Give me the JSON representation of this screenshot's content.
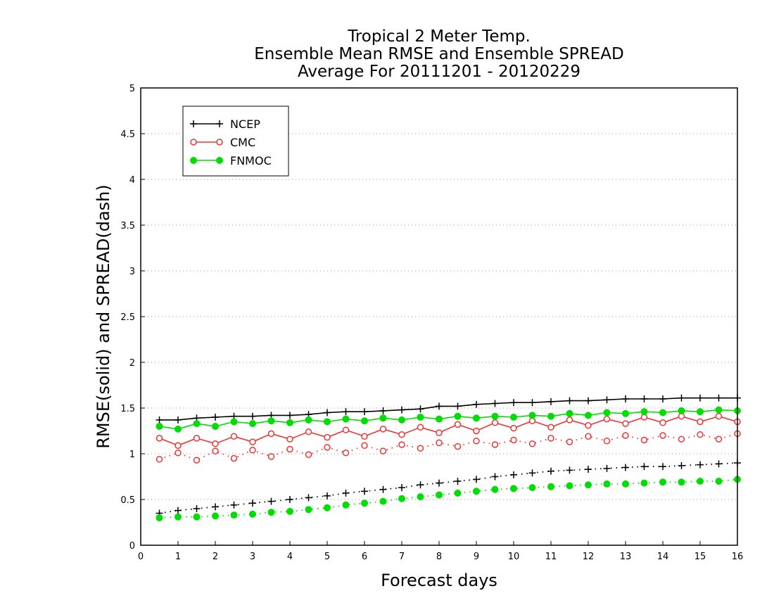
{
  "chart_data": {
    "type": "line",
    "title": [
      "Tropical 2 Meter Temp.",
      "Ensemble Mean RMSE and Ensemble SPREAD",
      "Average For 20111201 - 20120229"
    ],
    "xlabel": "Forecast days",
    "ylabel": "RMSE(solid) and SPREAD(dash)",
    "xlim": [
      0,
      16
    ],
    "ylim": [
      0,
      5
    ],
    "xticks": [
      0,
      1,
      2,
      3,
      4,
      5,
      6,
      7,
      8,
      9,
      10,
      11,
      12,
      13,
      14,
      15,
      16
    ],
    "yticks": [
      0,
      0.5,
      1,
      1.5,
      2,
      2.5,
      3,
      3.5,
      4,
      4.5,
      5
    ],
    "ytick_labels": [
      "0",
      "0.5",
      "1",
      "1.5",
      "2",
      "2.5",
      "3",
      "3.5",
      "4",
      "4.5",
      "5"
    ],
    "grid": "horizontal dotted",
    "legend_position": "top-left",
    "x": [
      0.5,
      1,
      1.5,
      2,
      2.5,
      3,
      3.5,
      4,
      4.5,
      5,
      5.5,
      6,
      6.5,
      7,
      7.5,
      8,
      8.5,
      9,
      9.5,
      10,
      10.5,
      11,
      11.5,
      12,
      12.5,
      13,
      13.5,
      14,
      14.5,
      15,
      15.5,
      16
    ],
    "series": [
      {
        "name": "NCEP",
        "kind": "rmse",
        "style": "solid",
        "color": "#000000",
        "marker": "plus",
        "values": [
          1.37,
          1.37,
          1.39,
          1.4,
          1.41,
          1.41,
          1.42,
          1.42,
          1.43,
          1.45,
          1.46,
          1.46,
          1.47,
          1.48,
          1.49,
          1.52,
          1.52,
          1.54,
          1.55,
          1.56,
          1.56,
          1.57,
          1.58,
          1.58,
          1.59,
          1.6,
          1.6,
          1.6,
          1.61,
          1.61,
          1.61,
          1.61
        ]
      },
      {
        "name": "CMC",
        "kind": "rmse",
        "style": "solid",
        "color": "#ee3333",
        "marker": "open-circle",
        "values": [
          1.17,
          1.09,
          1.17,
          1.11,
          1.19,
          1.13,
          1.22,
          1.16,
          1.24,
          1.18,
          1.26,
          1.19,
          1.27,
          1.21,
          1.29,
          1.23,
          1.32,
          1.25,
          1.34,
          1.28,
          1.36,
          1.29,
          1.37,
          1.31,
          1.38,
          1.33,
          1.4,
          1.34,
          1.41,
          1.35,
          1.41,
          1.35
        ]
      },
      {
        "name": "FNMOC",
        "kind": "rmse",
        "style": "solid",
        "color": "#00dd00",
        "marker": "filled-circle",
        "values": [
          1.3,
          1.27,
          1.33,
          1.3,
          1.35,
          1.33,
          1.36,
          1.34,
          1.37,
          1.35,
          1.38,
          1.36,
          1.39,
          1.37,
          1.4,
          1.38,
          1.41,
          1.39,
          1.41,
          1.4,
          1.42,
          1.41,
          1.44,
          1.42,
          1.45,
          1.44,
          1.46,
          1.45,
          1.47,
          1.46,
          1.48,
          1.47
        ]
      },
      {
        "name": "NCEP",
        "kind": "spread",
        "style": "dash",
        "color": "#000000",
        "marker": "plus",
        "values": [
          0.35,
          0.38,
          0.4,
          0.42,
          0.44,
          0.46,
          0.48,
          0.5,
          0.52,
          0.54,
          0.57,
          0.59,
          0.61,
          0.63,
          0.66,
          0.68,
          0.7,
          0.72,
          0.75,
          0.77,
          0.79,
          0.81,
          0.82,
          0.83,
          0.84,
          0.85,
          0.86,
          0.86,
          0.87,
          0.88,
          0.89,
          0.9
        ]
      },
      {
        "name": "CMC",
        "kind": "spread",
        "style": "dash",
        "color": "#ee3333",
        "marker": "open-circle",
        "values": [
          0.94,
          1.01,
          0.93,
          1.03,
          0.95,
          1.04,
          0.97,
          1.05,
          0.99,
          1.07,
          1.01,
          1.09,
          1.03,
          1.1,
          1.06,
          1.12,
          1.08,
          1.14,
          1.1,
          1.15,
          1.11,
          1.17,
          1.13,
          1.19,
          1.14,
          1.2,
          1.15,
          1.2,
          1.16,
          1.21,
          1.16,
          1.22
        ]
      },
      {
        "name": "FNMOC",
        "kind": "spread",
        "style": "dash",
        "color": "#00dd00",
        "marker": "filled-circle",
        "values": [
          0.3,
          0.31,
          0.31,
          0.32,
          0.33,
          0.34,
          0.36,
          0.37,
          0.39,
          0.41,
          0.44,
          0.46,
          0.48,
          0.51,
          0.53,
          0.55,
          0.57,
          0.59,
          0.61,
          0.62,
          0.63,
          0.64,
          0.65,
          0.66,
          0.67,
          0.67,
          0.68,
          0.69,
          0.69,
          0.7,
          0.7,
          0.72
        ]
      }
    ],
    "legend": [
      "NCEP",
      "CMC",
      "FNMOC"
    ]
  }
}
